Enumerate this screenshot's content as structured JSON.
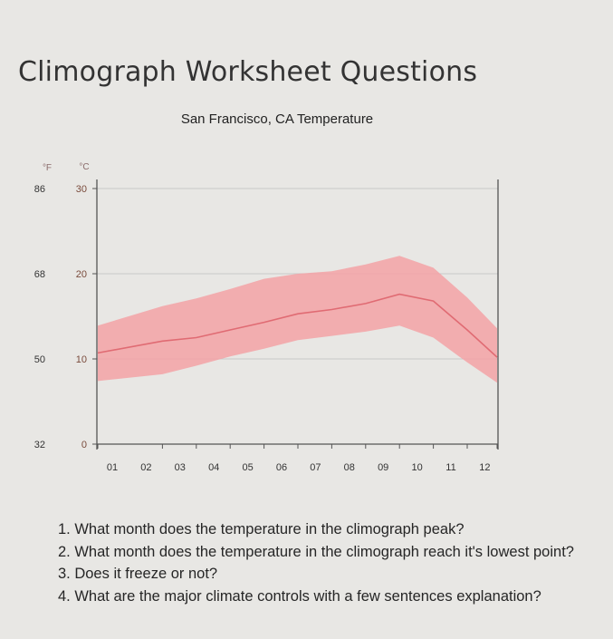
{
  "page": {
    "title": "Climograph Worksheet Questions"
  },
  "chart_data": {
    "type": "area",
    "title": "San Francisco, CA Temperature",
    "unit_f": "°F",
    "unit_c": "°C",
    "y_ticks_f": [
      "86",
      "68",
      "50",
      "32"
    ],
    "y_ticks_c": [
      "30",
      "20",
      "10",
      "0"
    ],
    "ylim_c": [
      0,
      30
    ],
    "categories": [
      "01",
      "02",
      "03",
      "04",
      "05",
      "06",
      "07",
      "08",
      "09",
      "10",
      "11",
      "12"
    ],
    "series": [
      {
        "values": [
          10.7,
          12.1,
          12.5,
          13.4,
          14.3,
          15.3,
          15.8,
          16.5,
          17.6,
          16.8,
          13.4,
          10.2
        ]
      }
    ],
    "range_low": [
      7.4,
      8.2,
      9.2,
      10.3,
      11.2,
      12.2,
      12.7,
      13.2,
      13.9,
      12.5,
      9.6,
      7.2
    ],
    "range_high": [
      13.9,
      16.2,
      17.1,
      18.2,
      19.4,
      20.0,
      20.3,
      21.1,
      22.1,
      20.7,
      17.2,
      13.6
    ],
    "colors": {
      "band": "#f3a2a6",
      "line": "#e06b73",
      "grid": "#c9c9c9",
      "axis": "#555555"
    }
  },
  "questions": [
    "1. What month does the temperature in the climograph peak?",
    "2. What month does the temperature in the climograph reach it's lowest point?",
    "3. Does it freeze or not?",
    "4. What are the major climate controls with a few sentences explanation?"
  ]
}
